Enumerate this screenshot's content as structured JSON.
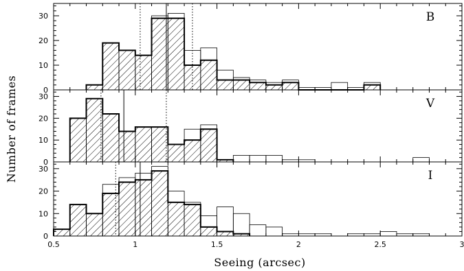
{
  "chart_data": {
    "type": "histogram",
    "xlabel": "Seeing (arcsec)",
    "ylabel": "Number of frames",
    "xlim": [
      0.5,
      3.0
    ],
    "xticks": [
      "0.5",
      "1",
      "1.5",
      "2",
      "2.5",
      "3"
    ],
    "bin_width": 0.1,
    "panels": [
      {
        "label": "B",
        "ylim": [
          0,
          35
        ],
        "yticks": [
          "0",
          "10",
          "20",
          "30"
        ],
        "outline_x0": 0.7,
        "outline_counts": [
          2,
          19,
          16,
          14,
          30,
          31,
          16,
          17,
          8,
          5,
          4,
          3,
          4,
          1,
          1,
          3,
          1,
          3
        ],
        "hatched_x0": 0.7,
        "hatched_counts": [
          2,
          19,
          16,
          14,
          29,
          29,
          10,
          12,
          4,
          4,
          3,
          2,
          3,
          0,
          0,
          0,
          0,
          2
        ],
        "solid_line": 1.19,
        "dotted_lines": [
          1.03,
          1.35
        ]
      },
      {
        "label": "V",
        "ylim": [
          0,
          33
        ],
        "yticks": [
          "0",
          "10",
          "20",
          "30"
        ],
        "outline_x0": 0.6,
        "outline_counts": [
          20,
          29,
          22,
          14,
          16,
          16,
          8,
          15,
          17,
          1,
          3,
          3,
          3,
          1,
          1,
          0,
          0,
          0,
          0,
          0,
          0,
          2
        ],
        "hatched_x0": 0.6,
        "hatched_counts": [
          20,
          29,
          22,
          14,
          16,
          16,
          8,
          10,
          15,
          1
        ],
        "solid_line": 0.93,
        "dotted_lines": [
          0.79,
          1.19
        ]
      },
      {
        "label": "I",
        "ylim": [
          0,
          33
        ],
        "yticks": [
          "0",
          "10",
          "20",
          "30"
        ],
        "outline_x0": 0.5,
        "outline_counts": [
          3,
          14,
          10,
          23,
          26,
          28,
          31,
          20,
          15,
          9,
          13,
          10,
          5,
          4,
          1,
          1,
          1,
          0,
          1,
          1,
          2,
          1,
          1
        ],
        "hatched_x0": 0.5,
        "hatched_counts": [
          3,
          14,
          10,
          19,
          24,
          25,
          29,
          15,
          14,
          4,
          2,
          1
        ],
        "solid_line": 1.03,
        "dotted_lines": [
          0.88,
          1.2
        ]
      }
    ]
  }
}
